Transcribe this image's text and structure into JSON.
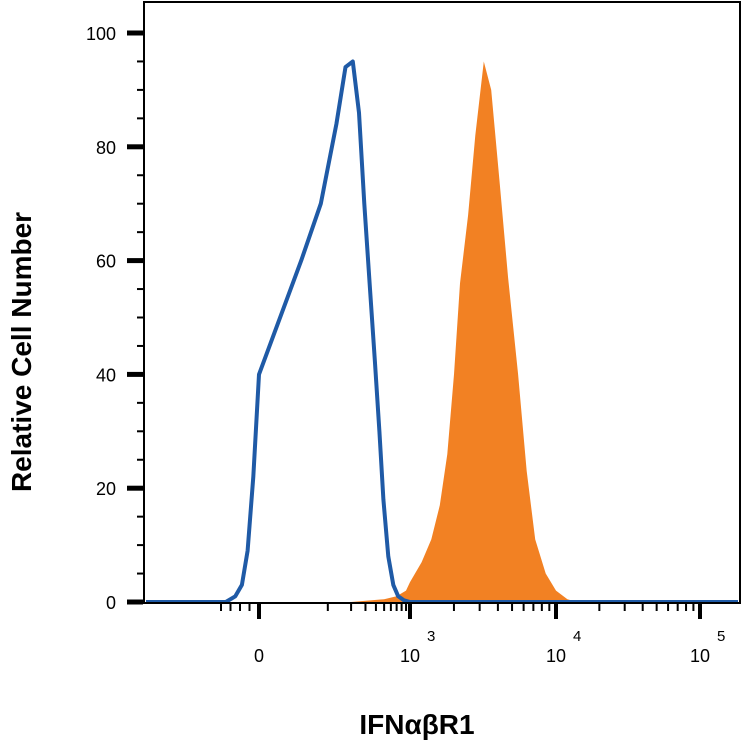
{
  "chart_data": {
    "type": "area",
    "title": "",
    "xlabel": "IFNαβR1",
    "ylabel": "Relative Cell Number",
    "x_scale": "biexponential",
    "xlim": [
      -500,
      200000
    ],
    "ylim": [
      0,
      100
    ],
    "y_ticks": [
      {
        "value": 0,
        "label": "0"
      },
      {
        "value": 20,
        "label": "20"
      },
      {
        "value": 40,
        "label": "40"
      },
      {
        "value": 60,
        "label": "60"
      },
      {
        "value": 80,
        "label": "80"
      },
      {
        "value": 100,
        "label": "100"
      }
    ],
    "x_ticks": [
      {
        "value": 0,
        "base": "0",
        "exp": ""
      },
      {
        "value": 1000,
        "base": "10",
        "exp": "3"
      },
      {
        "value": 10000,
        "base": "10",
        "exp": "4"
      },
      {
        "value": 100000,
        "base": "10",
        "exp": "5"
      }
    ],
    "grid": false,
    "legend": "none",
    "series": [
      {
        "style": "outline",
        "color": "#1f5aa6",
        "x": [
          -350,
          -250,
          -180,
          -120,
          -60,
          0,
          40,
          80,
          130,
          170,
          210,
          250,
          290,
          340,
          390,
          440,
          490,
          560,
          640,
          730,
          850,
          1000
        ],
        "y": [
          0,
          1,
          3,
          9,
          22,
          40,
          60,
          70,
          84,
          94,
          95,
          86,
          70,
          55,
          42,
          30,
          18,
          8,
          3,
          1,
          0.3,
          0
        ]
      },
      {
        "style": "filled",
        "color": "#f28123",
        "x": [
          200,
          500,
          700,
          900,
          1000,
          1200,
          1400,
          1600,
          1800,
          2000,
          2200,
          2500,
          2800,
          3200,
          3600,
          4100,
          4700,
          5500,
          6300,
          7200,
          8500,
          10000,
          12000,
          14000
        ],
        "y": [
          0,
          0.5,
          1,
          2,
          3.5,
          7,
          11,
          17,
          26,
          40,
          56,
          68,
          82,
          95,
          90,
          74,
          57,
          40,
          23,
          11,
          5,
          2,
          0.5,
          0
        ]
      }
    ]
  }
}
